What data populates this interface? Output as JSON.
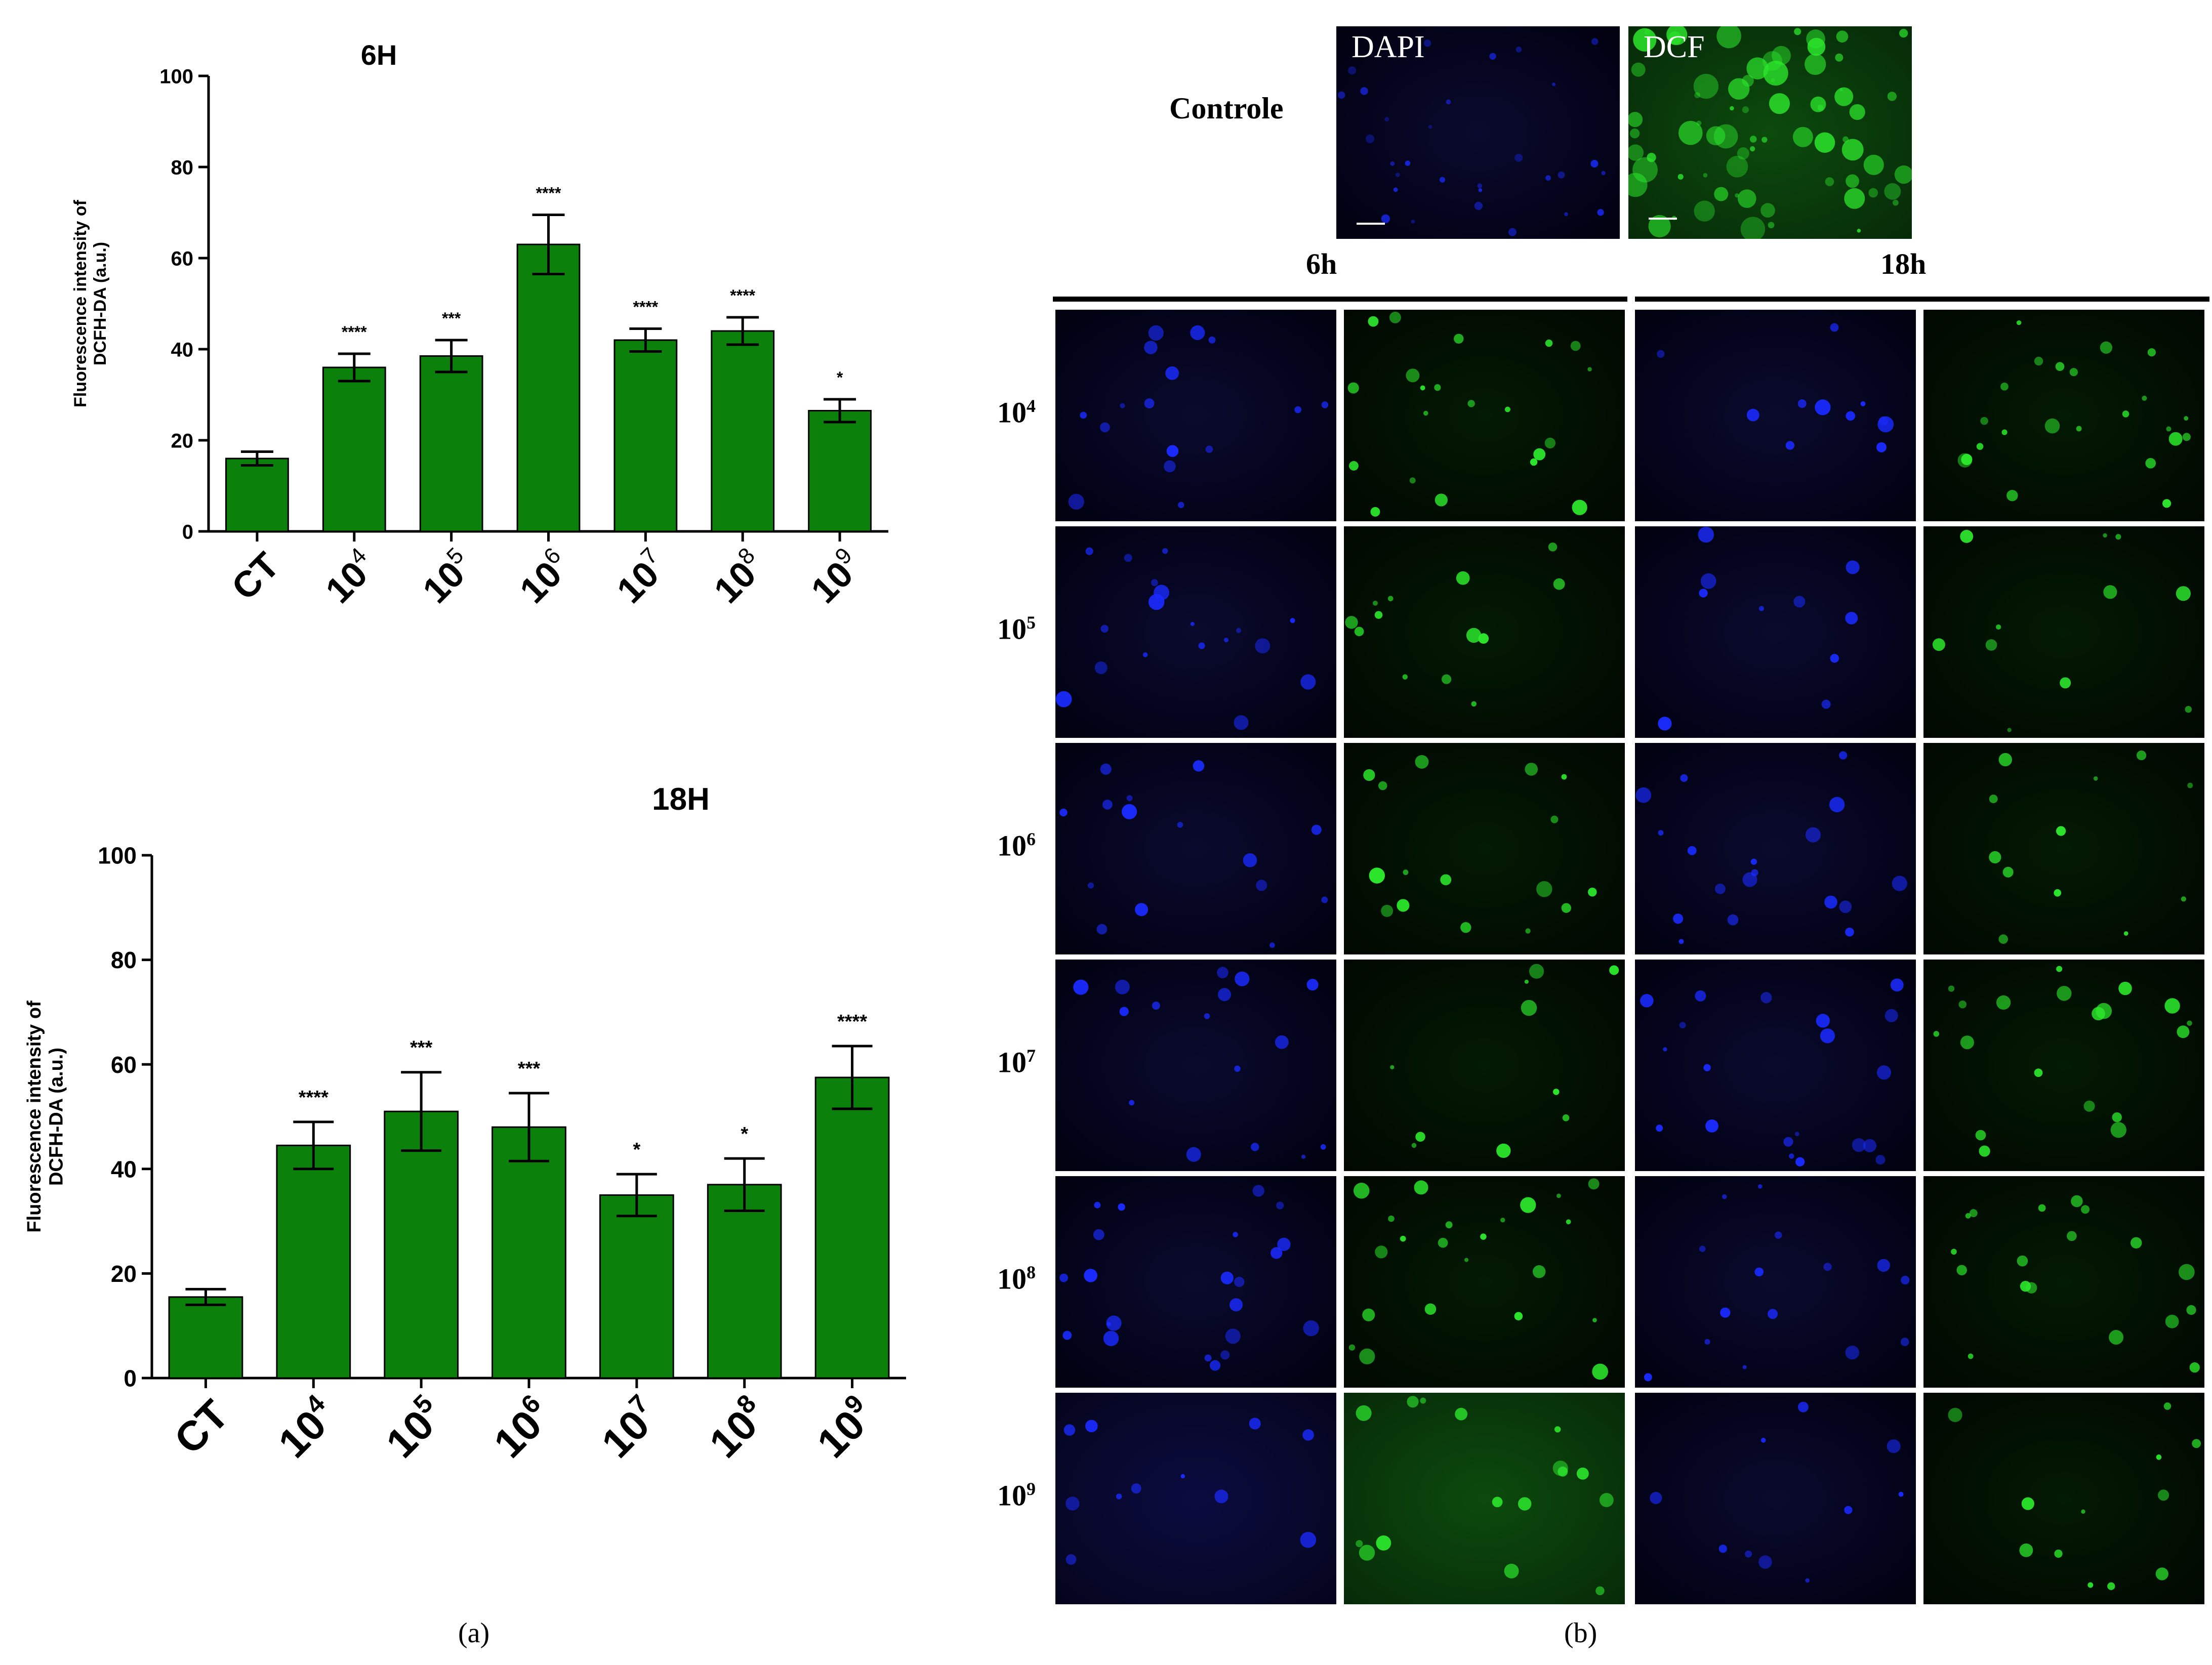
{
  "colors": {
    "bar_fill": "#0b800b",
    "bar_stroke": "#000000",
    "dapi": "#1a2bff",
    "dcf": "#2ce82c"
  },
  "chart_data": [
    {
      "type": "bar",
      "title": "6H",
      "ylabel": "Fluorescence intensity of DCFH-DA (a.u.)",
      "ylabel_lines": [
        "Fluorescence intensity of",
        "DCFH-DA (a.u.)"
      ],
      "ylim": [
        0,
        100
      ],
      "yticks": [
        0,
        20,
        40,
        60,
        80,
        100
      ],
      "categories": [
        {
          "base": "CT",
          "exp": ""
        },
        {
          "base": "10",
          "exp": "4"
        },
        {
          "base": "10",
          "exp": "5"
        },
        {
          "base": "10",
          "exp": "6"
        },
        {
          "base": "10",
          "exp": "7"
        },
        {
          "base": "10",
          "exp": "8"
        },
        {
          "base": "10",
          "exp": "9"
        }
      ],
      "values": [
        16,
        36,
        38.5,
        63,
        42,
        44,
        26.5
      ],
      "errors": [
        1.5,
        3,
        3.5,
        6.5,
        2.5,
        3,
        2.5
      ],
      "significance": [
        "",
        "****",
        "***",
        "****",
        "****",
        "****",
        "*"
      ],
      "grid": false
    },
    {
      "type": "bar",
      "title": "18H",
      "ylabel": "Fluorescence intensity of DCFH-DA (a.u.)",
      "ylabel_lines": [
        "Fluorescence intensity of",
        "DCFH-DA (a.u.)"
      ],
      "ylim": [
        0,
        100
      ],
      "yticks": [
        0,
        20,
        40,
        60,
        80,
        100
      ],
      "categories": [
        {
          "base": "CT",
          "exp": ""
        },
        {
          "base": "10",
          "exp": "4"
        },
        {
          "base": "10",
          "exp": "5"
        },
        {
          "base": "10",
          "exp": "6"
        },
        {
          "base": "10",
          "exp": "7"
        },
        {
          "base": "10",
          "exp": "8"
        },
        {
          "base": "10",
          "exp": "9"
        }
      ],
      "values": [
        15.5,
        44.5,
        51,
        48,
        35,
        37,
        57.5
      ],
      "errors": [
        1.5,
        4.5,
        7.5,
        6.5,
        4,
        5,
        6
      ],
      "significance": [
        "",
        "****",
        "***",
        "***",
        "*",
        "*",
        "****"
      ],
      "grid": false
    }
  ],
  "labels": {
    "a": "(a)",
    "b": "(b)"
  },
  "micrographs": {
    "control_label": "Controle",
    "dapi_label": "DAPI",
    "dcf_label": "DCF",
    "time_6h": "6h",
    "time_18h": "18h",
    "rows": [
      {
        "base": "10",
        "exp": "4"
      },
      {
        "base": "10",
        "exp": "5"
      },
      {
        "base": "10",
        "exp": "6"
      },
      {
        "base": "10",
        "exp": "7"
      },
      {
        "base": "10",
        "exp": "8"
      },
      {
        "base": "10",
        "exp": "9"
      }
    ]
  }
}
